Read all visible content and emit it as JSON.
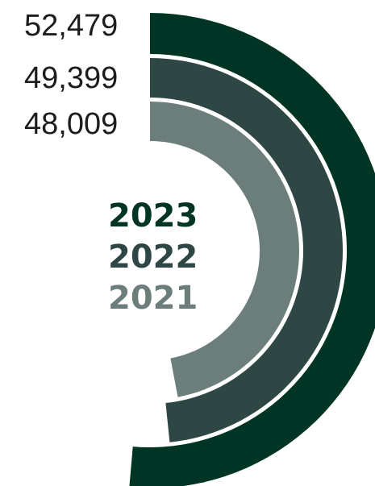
{
  "chart_data": {
    "type": "radial-bar",
    "categories": [
      "2023",
      "2022",
      "2021"
    ],
    "values": [
      52479,
      49399,
      48009
    ],
    "value_labels": [
      "52,479",
      "49,399",
      "48,009"
    ],
    "colors": {
      "2023": "#003526",
      "2022": "#2e4745",
      "2021": "#6c7e7b"
    },
    "background": "#ffffff"
  }
}
